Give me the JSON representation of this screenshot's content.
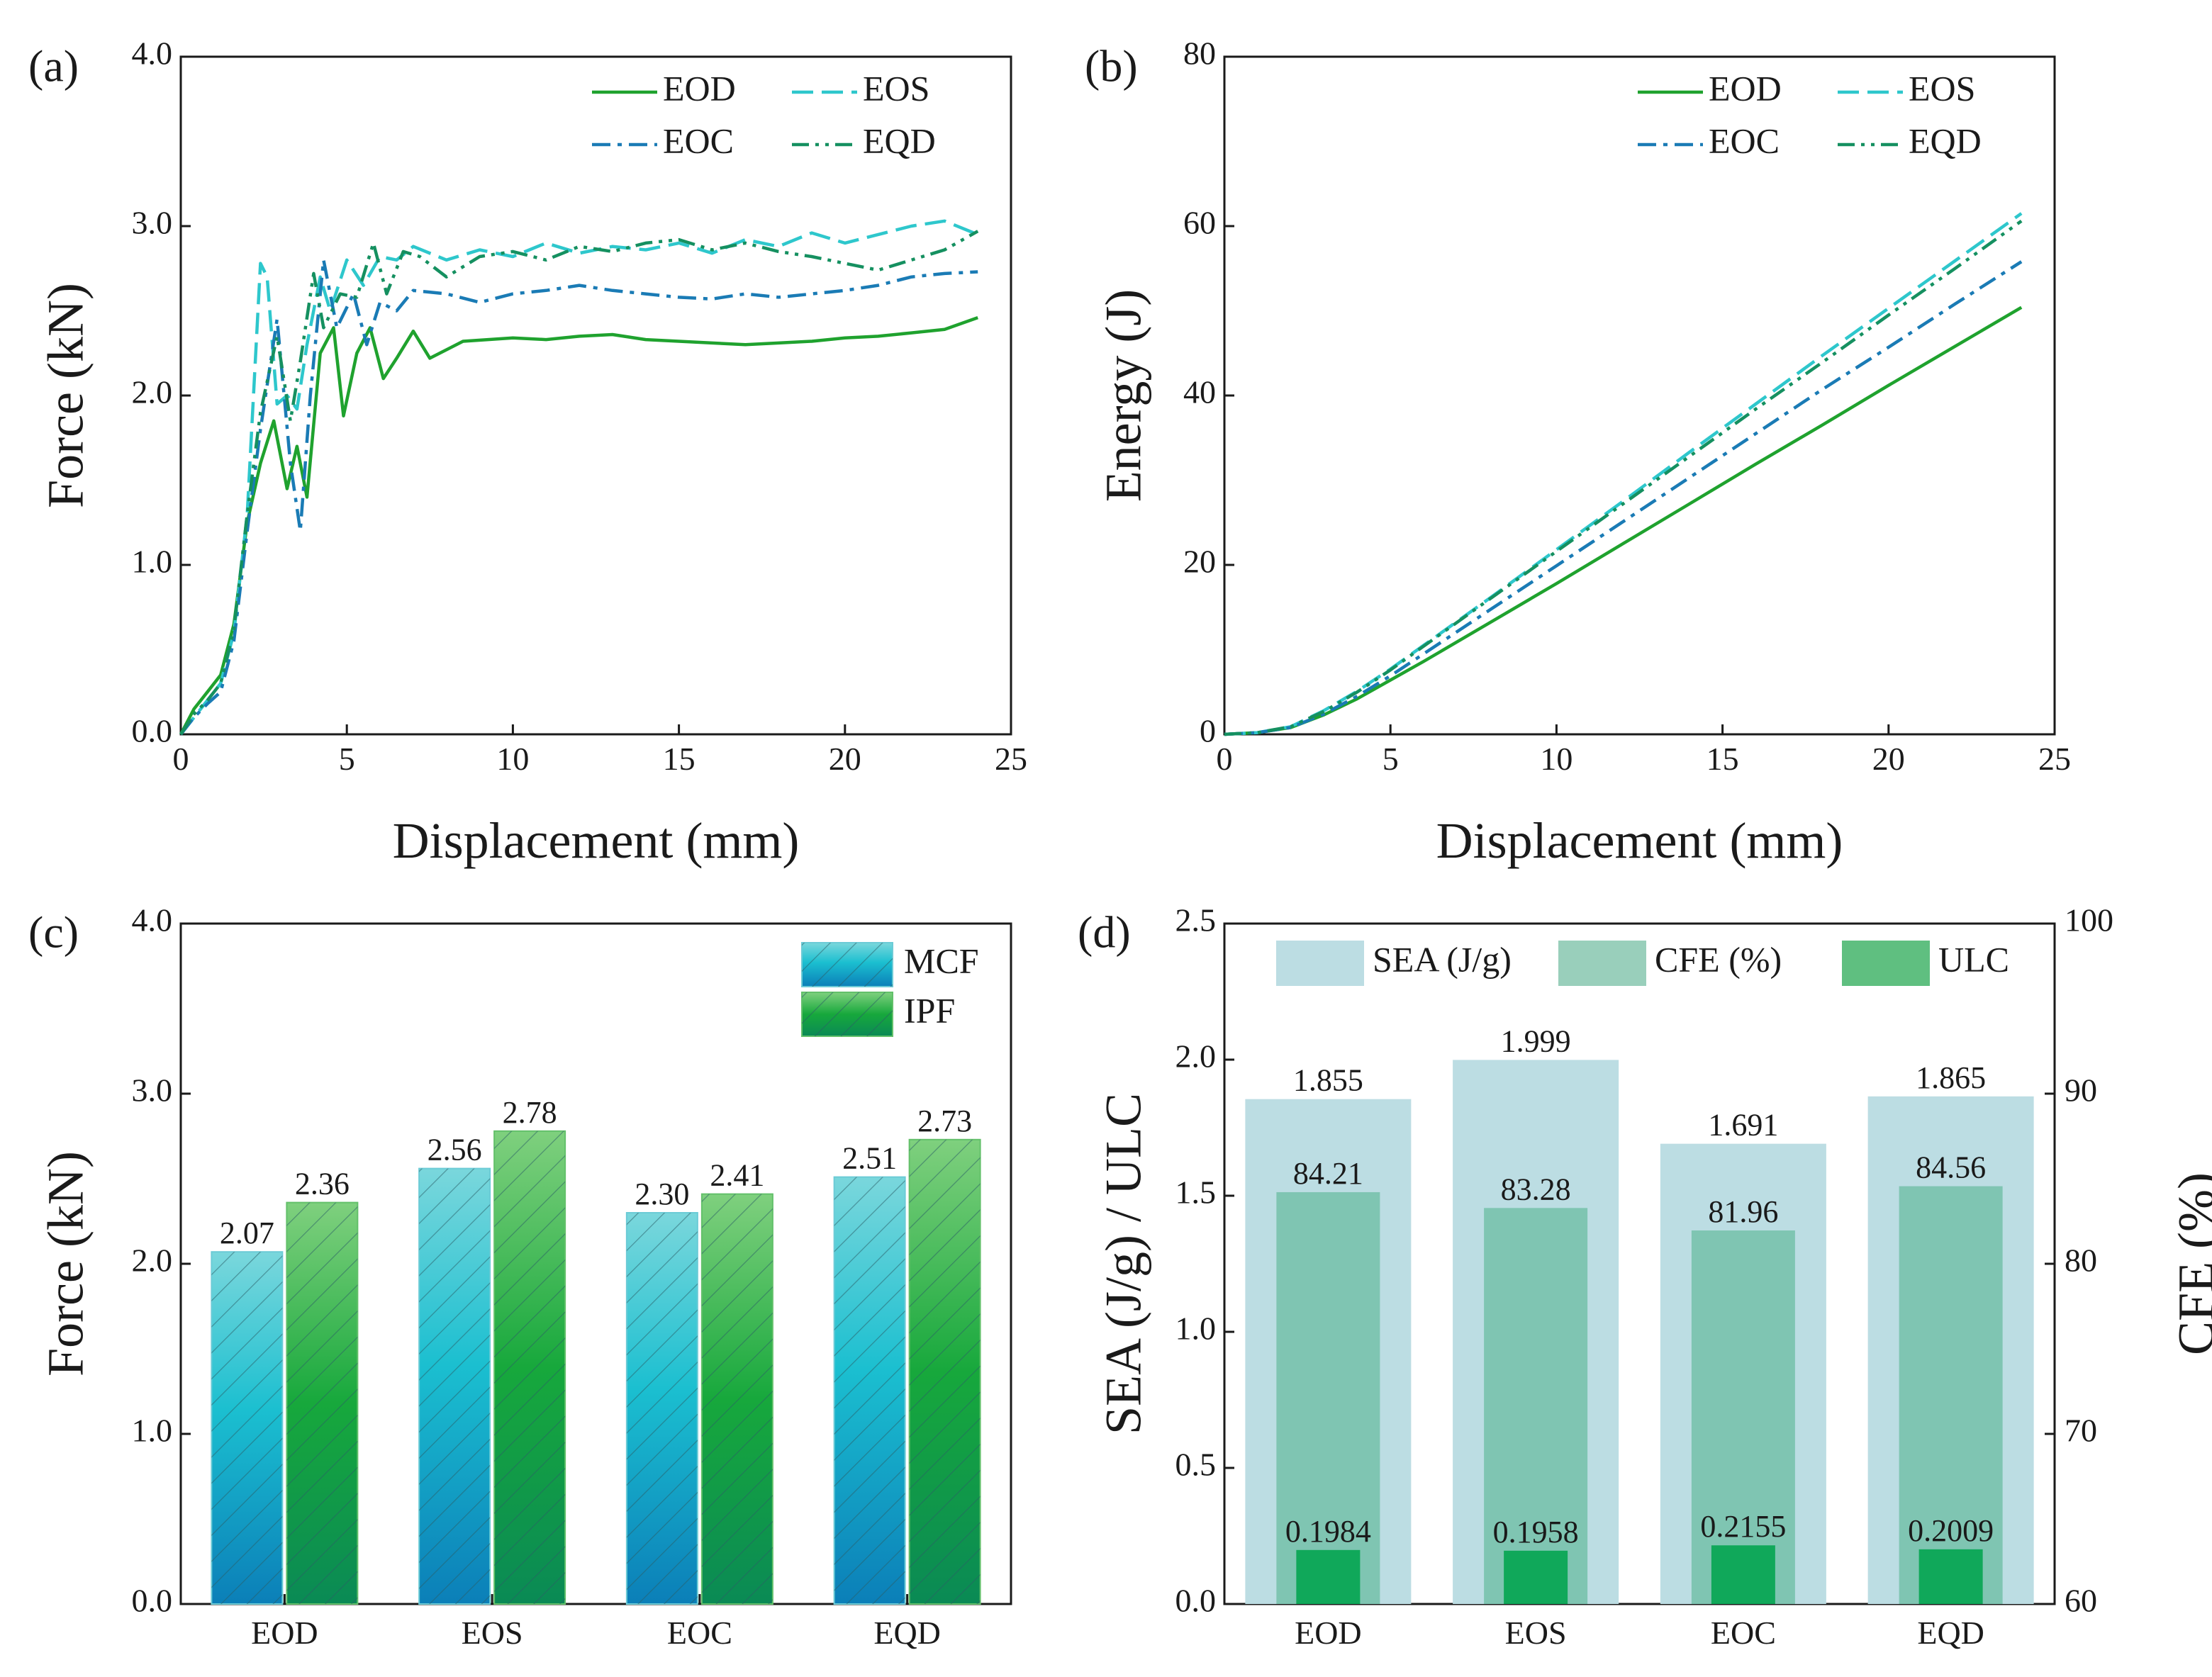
{
  "chart_data": [
    {
      "panel": "(a)",
      "type": "line",
      "xlabel": "Displacement (mm)",
      "ylabel": "Force (kN)",
      "xlim": [
        0,
        25
      ],
      "ylim": [
        0,
        4
      ],
      "xticks": [
        "0",
        "5",
        "10",
        "15",
        "20",
        "25"
      ],
      "yticks": [
        "0.0",
        "1.0",
        "2.0",
        "3.0",
        "4.0"
      ],
      "legend": "top-right",
      "series": [
        {
          "name": "EOD",
          "color": "#1fa22e",
          "dash": "solid",
          "x": [
            0,
            0.4,
            0.8,
            1.2,
            1.6,
            2.0,
            2.4,
            2.8,
            3.2,
            3.5,
            3.8,
            4.2,
            4.6,
            4.9,
            5.3,
            5.7,
            6.1,
            6.5,
            7.0,
            7.5,
            8.5,
            10,
            11,
            12,
            13,
            14,
            15,
            16,
            17,
            18,
            19,
            20,
            21,
            22,
            23,
            24
          ],
          "y": [
            0,
            0.15,
            0.25,
            0.35,
            0.65,
            1.25,
            1.6,
            1.85,
            1.45,
            1.7,
            1.4,
            2.25,
            2.4,
            1.88,
            2.25,
            2.4,
            2.1,
            2.22,
            2.38,
            2.22,
            2.32,
            2.34,
            2.33,
            2.35,
            2.36,
            2.33,
            2.32,
            2.31,
            2.3,
            2.31,
            2.32,
            2.34,
            2.35,
            2.37,
            2.39,
            2.46
          ]
        },
        {
          "name": "EOS",
          "color": "#2ec7cc",
          "dash": "dashed",
          "x": [
            0,
            0.4,
            0.8,
            1.2,
            1.6,
            2.0,
            2.4,
            2.6,
            2.9,
            3.2,
            3.5,
            3.8,
            4.2,
            4.5,
            5.0,
            5.5,
            6.0,
            6.5,
            7.0,
            8,
            9,
            10,
            11,
            12,
            13,
            14,
            15,
            16,
            17,
            18,
            19,
            20,
            21,
            22,
            23,
            24
          ],
          "y": [
            0,
            0.1,
            0.2,
            0.3,
            0.6,
            1.3,
            2.78,
            2.7,
            1.95,
            2.0,
            1.92,
            2.3,
            2.7,
            2.5,
            2.8,
            2.65,
            2.82,
            2.8,
            2.88,
            2.8,
            2.86,
            2.82,
            2.9,
            2.84,
            2.88,
            2.86,
            2.9,
            2.84,
            2.92,
            2.88,
            2.96,
            2.9,
            2.95,
            3.0,
            3.03,
            2.95
          ]
        },
        {
          "name": "EOC",
          "color": "#1a7bb5",
          "dash": "dashdot",
          "x": [
            0,
            0.4,
            0.8,
            1.2,
            1.6,
            2.0,
            2.4,
            2.9,
            3.3,
            3.6,
            3.9,
            4.3,
            4.7,
            5.2,
            5.6,
            6.0,
            6.5,
            7.0,
            8,
            9,
            10,
            11,
            12,
            13,
            14,
            15,
            16,
            17,
            18,
            19,
            20,
            21,
            22,
            23,
            24
          ],
          "y": [
            0,
            0.1,
            0.18,
            0.25,
            0.55,
            1.2,
            1.8,
            2.45,
            1.6,
            1.2,
            2.0,
            2.8,
            2.4,
            2.6,
            2.3,
            2.55,
            2.5,
            2.62,
            2.6,
            2.55,
            2.6,
            2.62,
            2.65,
            2.62,
            2.6,
            2.58,
            2.57,
            2.6,
            2.58,
            2.6,
            2.62,
            2.65,
            2.7,
            2.72,
            2.73
          ]
        },
        {
          "name": "EQD",
          "color": "#159060",
          "dash": "dashdotdot",
          "x": [
            0,
            0.4,
            0.8,
            1.2,
            1.6,
            2.0,
            2.4,
            2.9,
            3.3,
            3.6,
            4.0,
            4.3,
            4.8,
            5.3,
            5.8,
            6.2,
            6.7,
            7.2,
            8,
            9,
            10,
            11,
            12,
            13,
            14,
            15,
            16,
            17,
            18,
            19,
            20,
            21,
            22,
            23,
            24
          ],
          "y": [
            0,
            0.12,
            0.2,
            0.3,
            0.62,
            1.3,
            1.9,
            2.35,
            1.85,
            2.2,
            2.72,
            2.4,
            2.6,
            2.58,
            2.9,
            2.6,
            2.85,
            2.82,
            2.7,
            2.82,
            2.85,
            2.8,
            2.88,
            2.85,
            2.9,
            2.92,
            2.86,
            2.9,
            2.85,
            2.82,
            2.78,
            2.74,
            2.8,
            2.86,
            2.97
          ]
        }
      ]
    },
    {
      "panel": "(b)",
      "type": "line",
      "xlabel": "Displacement (mm)",
      "ylabel": "Energy (J)",
      "xlim": [
        0,
        25
      ],
      "ylim": [
        0,
        80
      ],
      "xticks": [
        "0",
        "5",
        "10",
        "15",
        "20",
        "25"
      ],
      "yticks": [
        "0",
        "20",
        "40",
        "60",
        "80"
      ],
      "legend": "top-right",
      "series": [
        {
          "name": "EOD",
          "color": "#1fa22e",
          "dash": "solid",
          "x": [
            0,
            1,
            2,
            3,
            4,
            5,
            6,
            8,
            10,
            12,
            14,
            16,
            18,
            20,
            22,
            24
          ],
          "y": [
            0,
            0.2,
            0.8,
            2.3,
            4.2,
            6.4,
            8.6,
            13.2,
            17.8,
            22.5,
            27.2,
            31.9,
            36.5,
            41.2,
            45.8,
            50.4
          ]
        },
        {
          "name": "EOS",
          "color": "#2ec7cc",
          "dash": "dashed",
          "x": [
            0,
            1,
            2,
            3,
            4,
            5,
            6,
            8,
            10,
            12,
            14,
            16,
            18,
            20,
            22,
            24
          ],
          "y": [
            0,
            0.2,
            0.9,
            2.8,
            5.1,
            7.7,
            10.5,
            16.1,
            21.8,
            27.5,
            33.3,
            39.0,
            44.7,
            50.3,
            55.9,
            61.5
          ]
        },
        {
          "name": "EOC",
          "color": "#1a7bb5",
          "dash": "dashdot",
          "x": [
            0,
            1,
            2,
            3,
            4,
            5,
            6,
            8,
            10,
            12,
            14,
            16,
            18,
            20,
            22,
            24
          ],
          "y": [
            0,
            0.2,
            0.8,
            2.4,
            4.5,
            6.9,
            9.5,
            14.7,
            19.9,
            25.1,
            30.3,
            35.5,
            40.7,
            45.7,
            50.8,
            55.8
          ]
        },
        {
          "name": "EQD",
          "color": "#159060",
          "dash": "dashdotdot",
          "x": [
            0,
            1,
            2,
            3,
            4,
            5,
            6,
            8,
            10,
            12,
            14,
            16,
            18,
            20,
            22,
            24
          ],
          "y": [
            0,
            0.2,
            0.9,
            2.7,
            5.0,
            7.6,
            10.4,
            16.0,
            21.6,
            27.2,
            32.8,
            38.4,
            43.9,
            49.5,
            55.0,
            60.6
          ]
        }
      ]
    },
    {
      "panel": "(c)",
      "type": "bar",
      "ylabel": "Force (kN)",
      "ylim": [
        0,
        4
      ],
      "yticks": [
        "0.0",
        "1.0",
        "2.0",
        "3.0",
        "4.0"
      ],
      "categories": [
        "EOD",
        "EOS",
        "EOC",
        "EQD"
      ],
      "legend": "top-right",
      "series": [
        {
          "name": "MCF",
          "values": [
            2.07,
            2.56,
            2.3,
            2.51
          ],
          "labels": [
            "2.07",
            "2.56",
            "2.30",
            "2.51"
          ]
        },
        {
          "name": "IPF",
          "values": [
            2.36,
            2.78,
            2.41,
            2.73
          ],
          "labels": [
            "2.36",
            "2.78",
            "2.41",
            "2.73"
          ]
        }
      ]
    },
    {
      "panel": "(d)",
      "type": "bar",
      "ylabel": "SEA (J/g) / ULC",
      "ylabel_right": "CFE (%)",
      "ylim": [
        0,
        2.5
      ],
      "ylim_right": [
        60,
        100
      ],
      "yticks": [
        "0.0",
        "0.5",
        "1.0",
        "1.5",
        "2.0",
        "2.5"
      ],
      "yticks_right": [
        "60",
        "70",
        "80",
        "90",
        "100"
      ],
      "categories": [
        "EOD",
        "EOS",
        "EOC",
        "EQD"
      ],
      "legend": "top",
      "series": [
        {
          "name": "SEA (J/g)",
          "axis": "left",
          "values": [
            1.855,
            1.999,
            1.691,
            1.865
          ],
          "labels": [
            "1.855",
            "1.999",
            "1.691",
            "1.865"
          ]
        },
        {
          "name": "CFE (%)",
          "axis": "right",
          "values": [
            84.21,
            83.28,
            81.96,
            84.56
          ],
          "labels": [
            "84.21",
            "83.28",
            "81.96",
            "84.56"
          ]
        },
        {
          "name": "ULC",
          "axis": "left",
          "values": [
            0.1984,
            0.1958,
            0.2155,
            0.2009
          ],
          "labels": [
            "0.1984",
            "0.1958",
            "0.2155",
            "0.2009"
          ]
        }
      ]
    }
  ]
}
